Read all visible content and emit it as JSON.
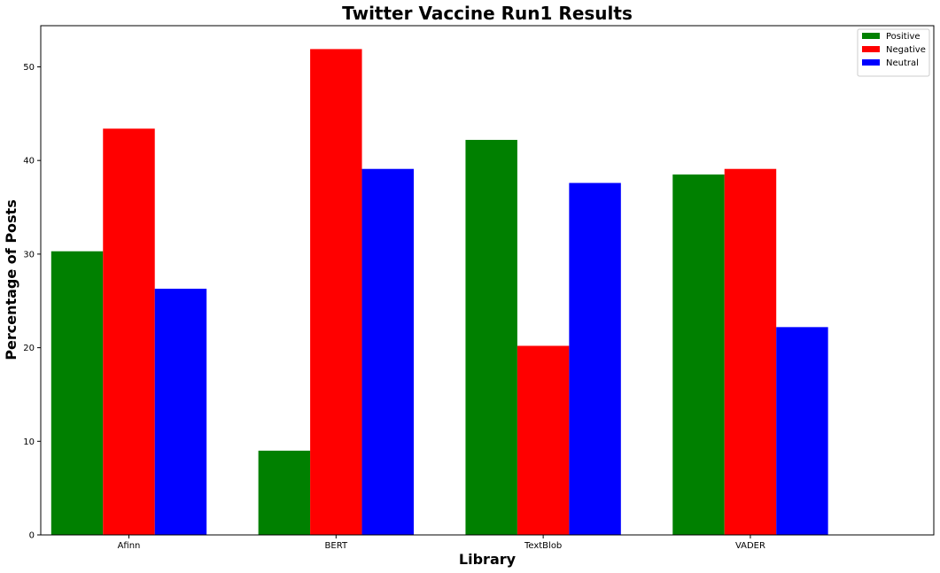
{
  "chart_data": {
    "type": "bar",
    "title": "Twitter Vaccine Run1 Results",
    "xlabel": "Library",
    "ylabel": "Percentage of Posts",
    "categories": [
      "Afinn",
      "BERT",
      "TextBlob",
      "VADER"
    ],
    "series": [
      {
        "name": "Positive",
        "color": "#008000",
        "values": [
          30.3,
          9.0,
          42.2,
          38.5
        ]
      },
      {
        "name": "Negative",
        "color": "#ff0000",
        "values": [
          43.4,
          51.9,
          20.2,
          39.1
        ]
      },
      {
        "name": "Neutral",
        "color": "#0000ff",
        "values": [
          26.3,
          39.1,
          37.6,
          22.2
        ]
      }
    ],
    "ylim": [
      0,
      54.4
    ],
    "yticks": [
      0,
      10,
      20,
      30,
      40,
      50
    ],
    "grid": false,
    "legend_position": "top-right"
  }
}
